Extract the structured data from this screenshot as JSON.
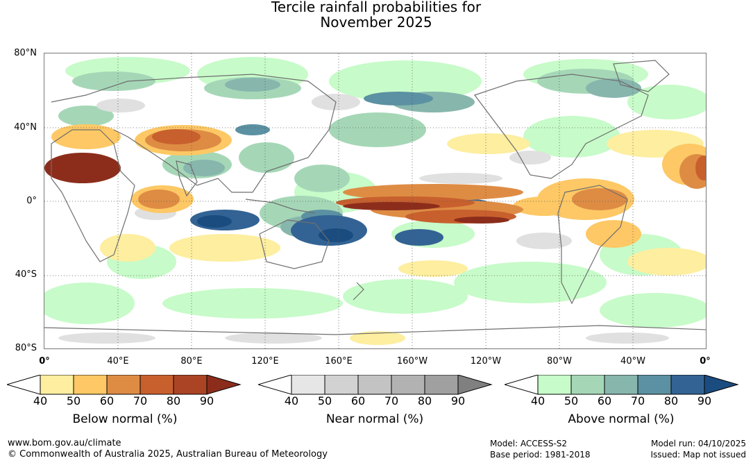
{
  "title": {
    "line1": "Tercile rainfall probabilities for",
    "line2": "November 2025"
  },
  "map": {
    "lat_labels": [
      "80°N",
      "40°N",
      "0°",
      "40°S",
      "80°S"
    ],
    "lon_labels": [
      "0°",
      "40°E",
      "80°E",
      "120°E",
      "160°E",
      "160°W",
      "120°W",
      "80°W",
      "40°W",
      "0°"
    ],
    "colors": {
      "below": [
        "#fdeea0",
        "#fdc865",
        "#de8c44",
        "#c8602e",
        "#aa4424",
        "#8c2d1c"
      ],
      "near": [
        "#e6e6e6",
        "#d2d2d2",
        "#c3c3c3",
        "#b2b2b2",
        "#a0a0a0",
        "#808080"
      ],
      "above": [
        "#c7fbc9",
        "#a5d7b7",
        "#87b6ad",
        "#5b91a2",
        "#336394",
        "#1a4c80"
      ],
      "coast": "#6e6e6e"
    }
  },
  "legends": [
    {
      "caption": "Below normal (%)",
      "ticks": [
        "40",
        "50",
        "60",
        "70",
        "80",
        "90"
      ],
      "colors": [
        "#fdeea0",
        "#fdc865",
        "#de8c44",
        "#c8602e",
        "#aa4424",
        "#8c2d1c"
      ]
    },
    {
      "caption": "Near normal (%)",
      "ticks": [
        "40",
        "50",
        "60",
        "70",
        "80",
        "90"
      ],
      "colors": [
        "#e6e6e6",
        "#d2d2d2",
        "#c3c3c3",
        "#b2b2b2",
        "#a0a0a0",
        "#808080"
      ]
    },
    {
      "caption": "Above normal (%)",
      "ticks": [
        "40",
        "50",
        "60",
        "70",
        "80",
        "90"
      ],
      "colors": [
        "#c7fbc9",
        "#a5d7b7",
        "#87b6ad",
        "#5b91a2",
        "#336394",
        "#1a4c80"
      ]
    }
  ],
  "footer": {
    "url": "www.bom.gov.au/climate",
    "copyright": "© Commonwealth of Australia 2025, Australian Bureau of Meteorology",
    "model": "Model: ACCESS-S2",
    "base_period": "Base period: 1981-2018",
    "model_run": "Model run: 04/10/2025",
    "issued": "Issued: Map not issued"
  }
}
